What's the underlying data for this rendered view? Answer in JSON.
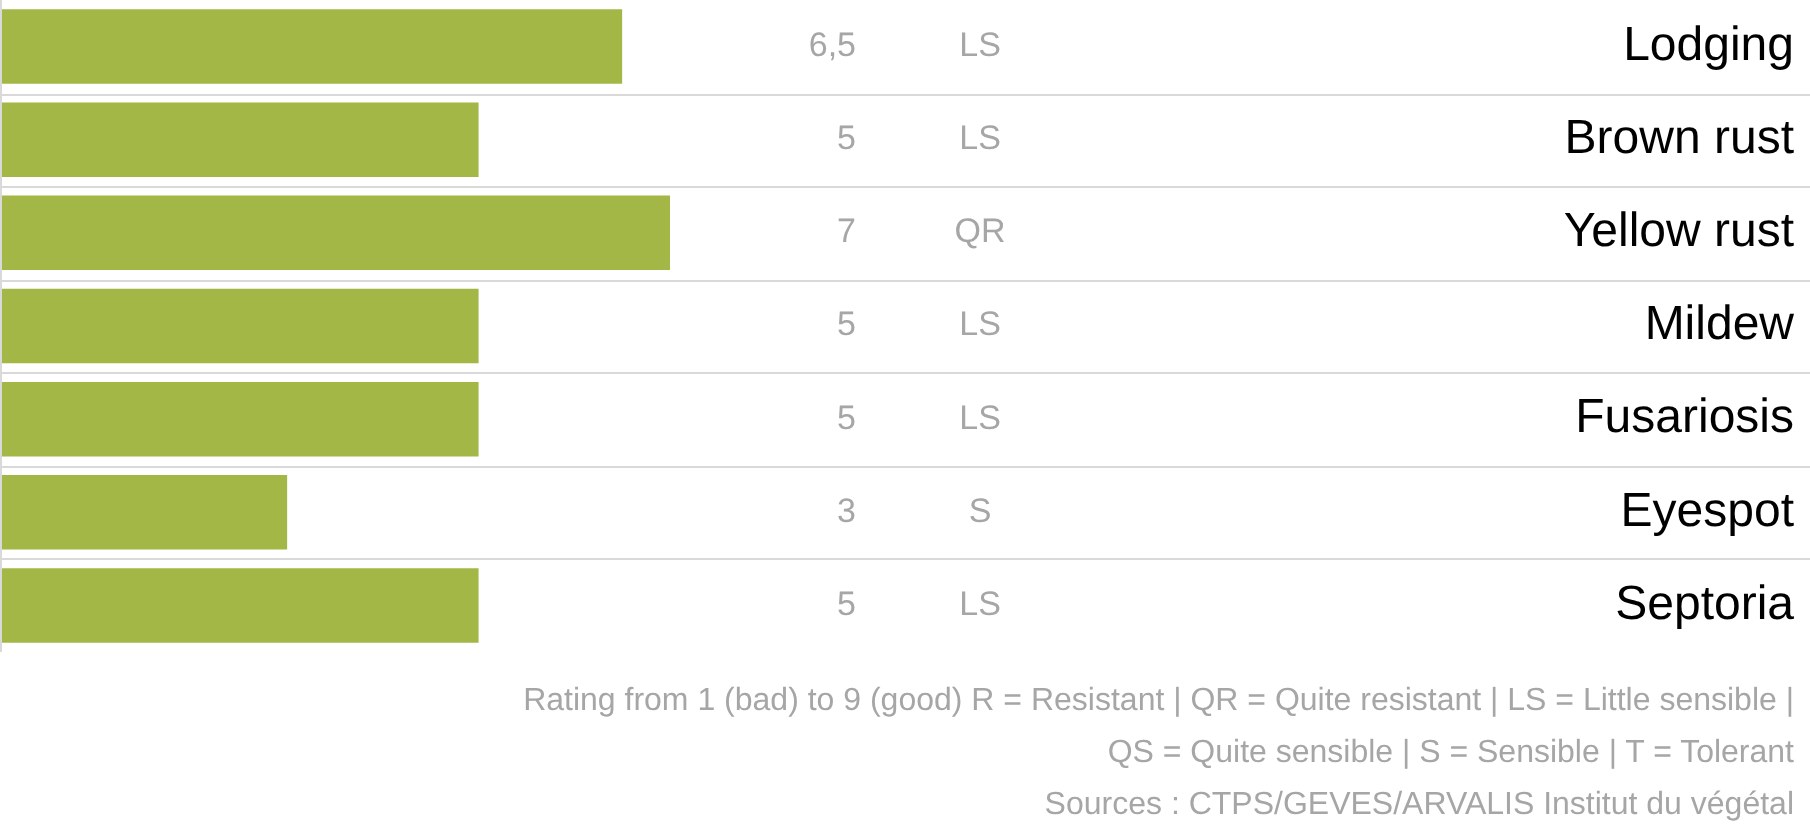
{
  "chart_data": {
    "type": "bar",
    "orientation": "horizontal",
    "categories": [
      "Lodging",
      "Brown rust",
      "Yellow rust",
      "Mildew",
      "Fusariosis",
      "Eyespot",
      "Septoria"
    ],
    "values": [
      6.5,
      5,
      7,
      5,
      5,
      3,
      5
    ],
    "value_labels": [
      "6,5",
      "5",
      "7",
      "5",
      "5",
      "3",
      "5"
    ],
    "color": "#a2b746",
    "tick_labels": "y",
    "grid": "y",
    "legend": false,
    "annotations": [
      "LS",
      "LS",
      "QR",
      "LS",
      "LS",
      "S",
      "LS",
      "Rating from 1 (bad) to 9 (good) R = Resistant | QR = Quite resistant | LS = Little sensible |",
      "QS = Quite sensible | S = Sensible | T = Tolerant",
      "Sources : CTPS/GEVES/ARVALIS Institut du végétal"
    ]
  }
}
